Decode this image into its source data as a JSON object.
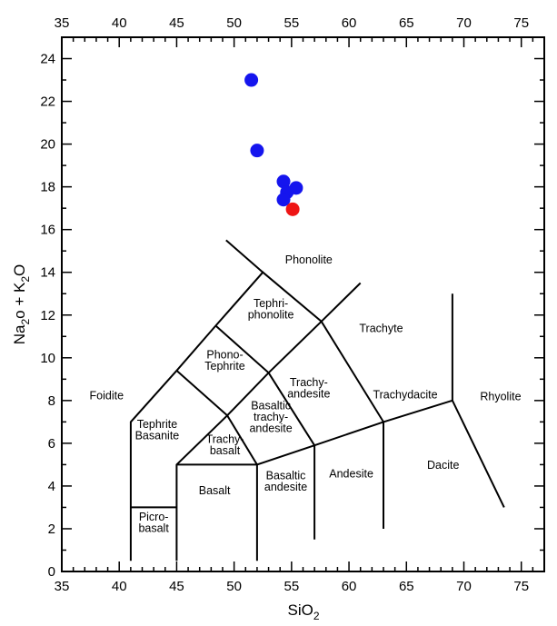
{
  "chart_data": {
    "type": "scatter",
    "title": "",
    "xlabel": {
      "prefix": "SiO",
      "sub": "2",
      "suffix": ""
    },
    "ylabel": {
      "parts": [
        "Na",
        "2",
        "o + K",
        "2",
        "O"
      ]
    },
    "xlim": [
      35,
      77
    ],
    "ylim": [
      0,
      25
    ],
    "x_ticks": [
      35,
      40,
      45,
      50,
      55,
      60,
      65,
      70,
      75
    ],
    "y_ticks": [
      0,
      2,
      4,
      6,
      8,
      10,
      12,
      14,
      16,
      18,
      20,
      22,
      24
    ],
    "grid": false,
    "legend": "none",
    "series": [
      {
        "color": "#1515ee",
        "points": [
          {
            "x": 51.5,
            "y": 23.0
          },
          {
            "x": 52.0,
            "y": 19.7
          },
          {
            "x": 54.3,
            "y": 18.25
          },
          {
            "x": 55.4,
            "y": 17.95
          },
          {
            "x": 54.6,
            "y": 17.75
          },
          {
            "x": 54.3,
            "y": 17.4
          }
        ]
      },
      {
        "color": "#ee1515",
        "points": [
          {
            "x": 55.1,
            "y": 16.95
          }
        ]
      }
    ],
    "field_boundaries": [
      [
        [
          41,
          0.5
        ],
        [
          41,
          7
        ],
        [
          45,
          9.4
        ],
        [
          48.4,
          11.5
        ],
        [
          52.5,
          14
        ],
        [
          57.6,
          11.7
        ],
        [
          61,
          13.5
        ]
      ],
      [
        [
          45,
          0.5
        ],
        [
          45,
          5
        ],
        [
          49.4,
          7.3
        ],
        [
          53,
          9.3
        ],
        [
          57.6,
          11.7
        ]
      ],
      [
        [
          52,
          0.5
        ],
        [
          52,
          5
        ],
        [
          57,
          5.9
        ],
        [
          63,
          7
        ],
        [
          69,
          8
        ],
        [
          73.5,
          3
        ]
      ],
      [
        [
          41,
          3
        ],
        [
          45,
          3
        ]
      ],
      [
        [
          45,
          5
        ],
        [
          52,
          5
        ]
      ],
      [
        [
          45,
          9.4
        ],
        [
          49.4,
          7.3
        ],
        [
          52,
          5
        ]
      ],
      [
        [
          48.4,
          11.5
        ],
        [
          53,
          9.3
        ],
        [
          57,
          5.9
        ],
        [
          57,
          1.5
        ]
      ],
      [
        [
          52.5,
          14
        ],
        [
          49.3,
          15.5
        ]
      ],
      [
        [
          57.6,
          11.7
        ],
        [
          63,
          7
        ],
        [
          63,
          2
        ]
      ],
      [
        [
          69,
          8
        ],
        [
          69,
          13
        ]
      ]
    ],
    "field_labels": [
      {
        "lines": [
          "Phonolite"
        ],
        "x": 56.5,
        "y": 14.6
      },
      {
        "lines": [
          "Tephri-",
          "phonolite"
        ],
        "x": 53.2,
        "y": 12.3
      },
      {
        "lines": [
          "Trachyte"
        ],
        "x": 62.8,
        "y": 11.4
      },
      {
        "lines": [
          "Phono-",
          "Tephrite"
        ],
        "x": 49.2,
        "y": 9.9
      },
      {
        "lines": [
          "Foidite"
        ],
        "x": 38.9,
        "y": 8.25
      },
      {
        "lines": [
          "Trachy-",
          "andesite"
        ],
        "x": 56.5,
        "y": 8.6
      },
      {
        "lines": [
          "Trachydacite"
        ],
        "x": 64.9,
        "y": 8.3
      },
      {
        "lines": [
          "Rhyolite"
        ],
        "x": 73.2,
        "y": 8.2
      },
      {
        "lines": [
          "Basaltic",
          "trachy-",
          "andesite"
        ],
        "x": 53.2,
        "y": 7.25
      },
      {
        "lines": [
          "Tephrite",
          "Basanite"
        ],
        "x": 43.3,
        "y": 6.65
      },
      {
        "lines": [
          "Trachy-",
          "basalt"
        ],
        "x": 49.2,
        "y": 5.95
      },
      {
        "lines": [
          "Dacite"
        ],
        "x": 68.2,
        "y": 5.0
      },
      {
        "lines": [
          "Andesite"
        ],
        "x": 60.2,
        "y": 4.6
      },
      {
        "lines": [
          "Basaltic",
          "andesite"
        ],
        "x": 54.5,
        "y": 4.25
      },
      {
        "lines": [
          "Basalt"
        ],
        "x": 48.3,
        "y": 3.8
      },
      {
        "lines": [
          "Picro-",
          "basalt"
        ],
        "x": 43.0,
        "y": 2.3
      }
    ]
  }
}
